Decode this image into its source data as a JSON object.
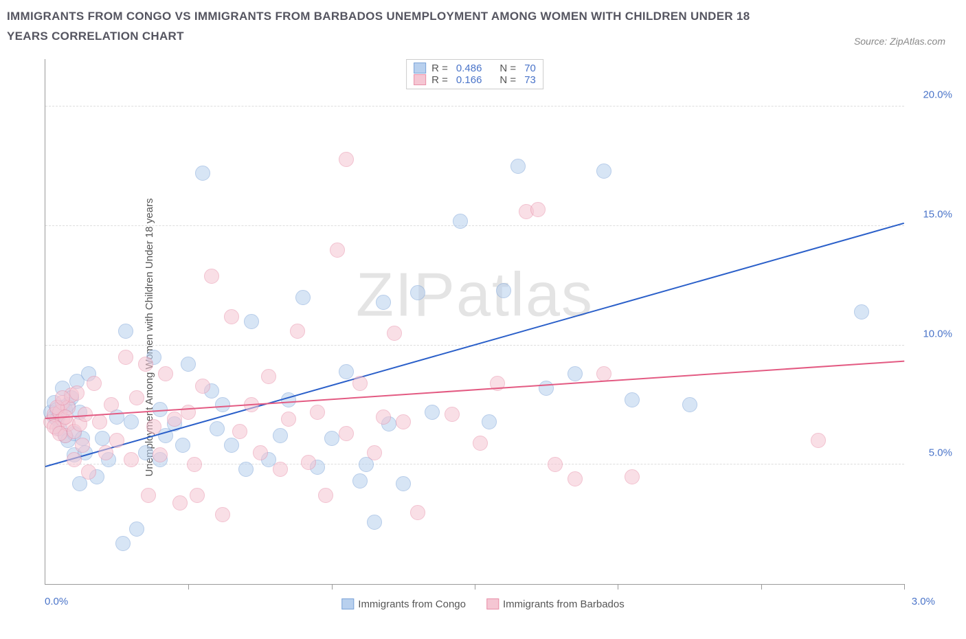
{
  "header": {
    "title": "IMMIGRANTS FROM CONGO VS IMMIGRANTS FROM BARBADOS UNEMPLOYMENT AMONG WOMEN WITH CHILDREN UNDER 18 YEARS CORRELATION CHART",
    "source": "Source: ZipAtlas.com"
  },
  "chart": {
    "type": "scatter",
    "ylabel": "Unemployment Among Women with Children Under 18 years",
    "xlim": [
      0,
      3.0
    ],
    "ylim": [
      0,
      22
    ],
    "xtick_label_left": "0.0%",
    "xtick_label_right": "3.0%",
    "yticks": [
      5,
      10,
      15,
      20
    ],
    "ytick_labels": [
      "5.0%",
      "10.0%",
      "15.0%",
      "20.0%"
    ],
    "xtick_positions": [
      0.5,
      1.0,
      1.5,
      2.0,
      2.5,
      3.0
    ],
    "grid_color": "#dddddd",
    "axis_color": "#999999",
    "tick_label_color": "#4a74c9",
    "background_color": "#ffffff",
    "watermark": "ZIPatlas",
    "marker_radius": 11,
    "series": [
      {
        "name": "Immigrants from Congo",
        "fill": "#b8d0ee",
        "stroke": "#7ba3d8",
        "fill_opacity": 0.55,
        "r_label": "R =",
        "r_value": "0.486",
        "n_label": "N =",
        "n_value": "70",
        "trend": {
          "x1": 0.0,
          "y1": 4.9,
          "x2": 3.0,
          "y2": 15.1,
          "color": "#2a5fc9",
          "width": 2
        },
        "points": [
          [
            0.02,
            7.2
          ],
          [
            0.03,
            7.0
          ],
          [
            0.04,
            6.9
          ],
          [
            0.05,
            7.1
          ],
          [
            0.05,
            6.5
          ],
          [
            0.06,
            7.4
          ],
          [
            0.06,
            8.2
          ],
          [
            0.07,
            6.2
          ],
          [
            0.07,
            7.3
          ],
          [
            0.08,
            7.5
          ],
          [
            0.08,
            6.0
          ],
          [
            0.09,
            7.8
          ],
          [
            0.1,
            6.3
          ],
          [
            0.1,
            5.4
          ],
          [
            0.11,
            8.5
          ],
          [
            0.12,
            7.2
          ],
          [
            0.12,
            4.2
          ],
          [
            0.13,
            6.1
          ],
          [
            0.14,
            5.5
          ],
          [
            0.15,
            8.8
          ],
          [
            0.18,
            4.5
          ],
          [
            0.2,
            6.1
          ],
          [
            0.22,
            5.2
          ],
          [
            0.25,
            7.0
          ],
          [
            0.27,
            1.7
          ],
          [
            0.28,
            10.6
          ],
          [
            0.3,
            6.8
          ],
          [
            0.32,
            2.3
          ],
          [
            0.35,
            5.5
          ],
          [
            0.38,
            9.5
          ],
          [
            0.4,
            7.3
          ],
          [
            0.4,
            5.2
          ],
          [
            0.42,
            6.2
          ],
          [
            0.45,
            6.7
          ],
          [
            0.48,
            5.8
          ],
          [
            0.5,
            9.2
          ],
          [
            0.55,
            17.2
          ],
          [
            0.58,
            8.1
          ],
          [
            0.6,
            6.5
          ],
          [
            0.62,
            7.5
          ],
          [
            0.65,
            5.8
          ],
          [
            0.7,
            4.8
          ],
          [
            0.72,
            11.0
          ],
          [
            0.78,
            5.2
          ],
          [
            0.82,
            6.2
          ],
          [
            0.85,
            7.7
          ],
          [
            0.9,
            12.0
          ],
          [
            0.95,
            4.9
          ],
          [
            1.0,
            6.1
          ],
          [
            1.05,
            8.9
          ],
          [
            1.1,
            4.3
          ],
          [
            1.12,
            5.0
          ],
          [
            1.15,
            2.6
          ],
          [
            1.18,
            11.8
          ],
          [
            1.2,
            6.7
          ],
          [
            1.25,
            4.2
          ],
          [
            1.3,
            12.2
          ],
          [
            1.35,
            7.2
          ],
          [
            1.45,
            15.2
          ],
          [
            1.55,
            6.8
          ],
          [
            1.6,
            12.3
          ],
          [
            1.65,
            17.5
          ],
          [
            1.75,
            8.2
          ],
          [
            1.85,
            8.8
          ],
          [
            1.95,
            17.3
          ],
          [
            2.05,
            7.7
          ],
          [
            2.25,
            7.5
          ],
          [
            2.85,
            11.4
          ],
          [
            0.03,
            7.6
          ],
          [
            0.04,
            7.3
          ]
        ]
      },
      {
        "name": "Immigrants from Barbados",
        "fill": "#f5c6d3",
        "stroke": "#e88fa8",
        "fill_opacity": 0.55,
        "r_label": "R =",
        "r_value": "0.166",
        "n_label": "N =",
        "n_value": "73",
        "trend": {
          "x1": 0.0,
          "y1": 6.9,
          "x2": 3.0,
          "y2": 9.3,
          "color": "#e35a82",
          "width": 2
        },
        "points": [
          [
            0.02,
            6.8
          ],
          [
            0.03,
            7.1
          ],
          [
            0.04,
            6.5
          ],
          [
            0.05,
            7.2
          ],
          [
            0.06,
            6.9
          ],
          [
            0.06,
            7.6
          ],
          [
            0.07,
            6.2
          ],
          [
            0.08,
            7.4
          ],
          [
            0.08,
            6.7
          ],
          [
            0.09,
            7.9
          ],
          [
            0.1,
            6.4
          ],
          [
            0.1,
            5.2
          ],
          [
            0.11,
            8.0
          ],
          [
            0.12,
            6.7
          ],
          [
            0.13,
            5.8
          ],
          [
            0.14,
            7.1
          ],
          [
            0.15,
            4.7
          ],
          [
            0.17,
            8.4
          ],
          [
            0.19,
            6.8
          ],
          [
            0.21,
            5.5
          ],
          [
            0.23,
            7.5
          ],
          [
            0.25,
            6.0
          ],
          [
            0.28,
            9.5
          ],
          [
            0.3,
            5.2
          ],
          [
            0.32,
            7.8
          ],
          [
            0.35,
            9.2
          ],
          [
            0.36,
            3.7
          ],
          [
            0.38,
            6.6
          ],
          [
            0.4,
            5.4
          ],
          [
            0.42,
            8.8
          ],
          [
            0.45,
            6.9
          ],
          [
            0.47,
            3.4
          ],
          [
            0.5,
            7.2
          ],
          [
            0.52,
            5.0
          ],
          [
            0.53,
            3.7
          ],
          [
            0.55,
            8.3
          ],
          [
            0.58,
            12.9
          ],
          [
            0.62,
            2.9
          ],
          [
            0.65,
            11.2
          ],
          [
            0.68,
            6.4
          ],
          [
            0.72,
            7.5
          ],
          [
            0.75,
            5.5
          ],
          [
            0.78,
            8.7
          ],
          [
            0.82,
            4.8
          ],
          [
            0.85,
            6.9
          ],
          [
            0.88,
            10.6
          ],
          [
            0.92,
            5.1
          ],
          [
            0.95,
            7.2
          ],
          [
            0.98,
            3.7
          ],
          [
            1.02,
            14.0
          ],
          [
            1.05,
            6.3
          ],
          [
            1.05,
            17.8
          ],
          [
            1.1,
            8.4
          ],
          [
            1.15,
            5.5
          ],
          [
            1.18,
            7.0
          ],
          [
            1.22,
            10.5
          ],
          [
            1.25,
            6.8
          ],
          [
            1.3,
            3.0
          ],
          [
            1.42,
            7.1
          ],
          [
            1.52,
            5.9
          ],
          [
            1.58,
            8.4
          ],
          [
            1.68,
            15.6
          ],
          [
            1.72,
            15.7
          ],
          [
            1.78,
            5.0
          ],
          [
            1.85,
            4.4
          ],
          [
            1.95,
            8.8
          ],
          [
            2.05,
            4.5
          ],
          [
            2.7,
            6.0
          ],
          [
            0.03,
            6.6
          ],
          [
            0.04,
            7.4
          ],
          [
            0.05,
            6.3
          ],
          [
            0.06,
            7.8
          ],
          [
            0.07,
            7.0
          ]
        ]
      }
    ],
    "legend_bottom": [
      "Immigrants from Congo",
      "Immigrants from Barbados"
    ]
  }
}
